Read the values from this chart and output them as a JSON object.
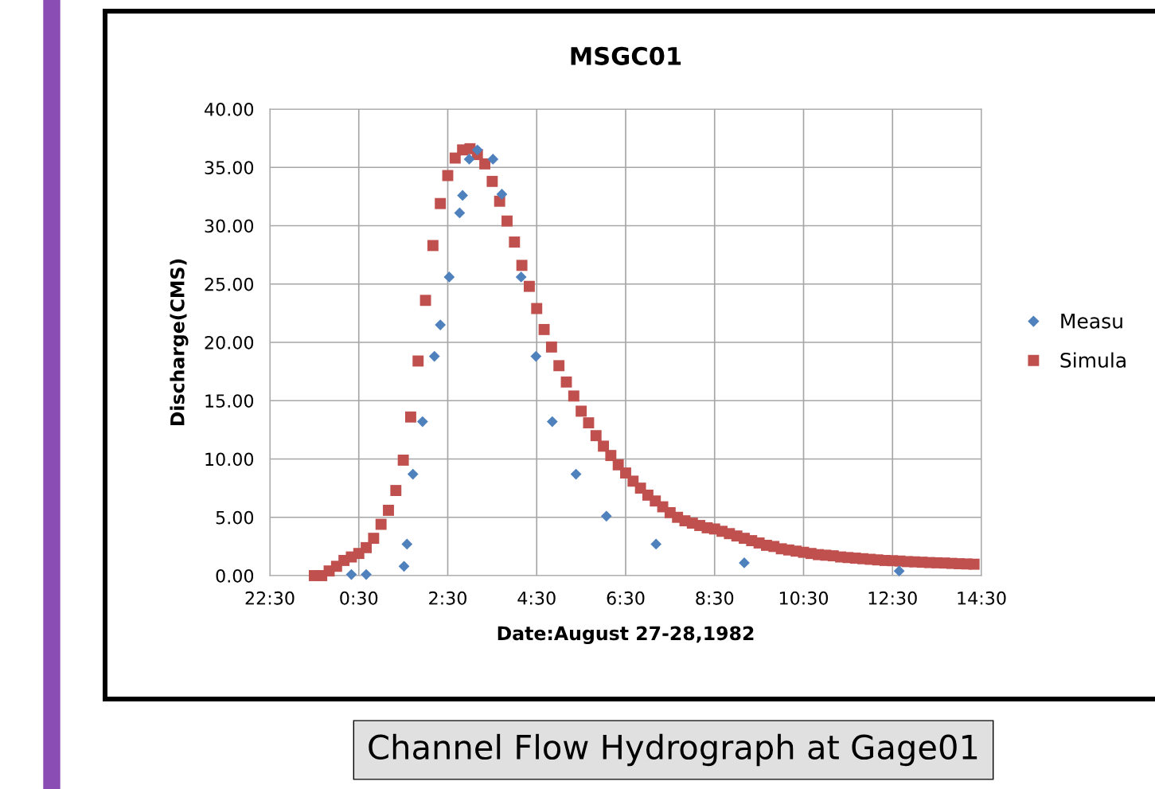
{
  "chart_data": {
    "type": "scatter",
    "title": "MSGC01",
    "xlabel": "Date:August 27-28,1982",
    "ylabel": "Discharge(CMS)",
    "annotations": [
      "Channel Flow Hydrograph at Gage01"
    ],
    "xlim": [
      "1982-08-27T22:30",
      "1982-08-28T14:30"
    ],
    "xticks": [
      {
        "value": "1982-08-27T22:30",
        "label": "22:30"
      },
      {
        "value": "1982-08-28T00:30",
        "label": "0:30"
      },
      {
        "value": "1982-08-28T02:30",
        "label": "2:30"
      },
      {
        "value": "1982-08-28T04:30",
        "label": "4:30"
      },
      {
        "value": "1982-08-28T06:30",
        "label": "6:30"
      },
      {
        "value": "1982-08-28T08:30",
        "label": "8:30"
      },
      {
        "value": "1982-08-28T10:30",
        "label": "10:30"
      },
      {
        "value": "1982-08-28T12:30",
        "label": "12:30"
      },
      {
        "value": "1982-08-28T14:30",
        "label": "14:30"
      }
    ],
    "ylim": [
      0,
      40
    ],
    "yticks": [
      {
        "value": 0,
        "label": "0.00"
      },
      {
        "value": 5,
        "label": "5.00"
      },
      {
        "value": 10,
        "label": "10.00"
      },
      {
        "value": 15,
        "label": "15.00"
      },
      {
        "value": 20,
        "label": "20.00"
      },
      {
        "value": 25,
        "label": "25.00"
      },
      {
        "value": 30,
        "label": "30.00"
      },
      {
        "value": 35,
        "label": "35.00"
      },
      {
        "value": 40,
        "label": "40.00"
      }
    ],
    "grid": true,
    "legend": "right",
    "series": [
      {
        "name": "Measu",
        "color": "#4f81bd",
        "marker": "diamond",
        "x": [
          "1982-08-28T00:20",
          "1982-08-28T00:40",
          "1982-08-28T01:31",
          "1982-08-28T01:35",
          "1982-08-28T01:43",
          "1982-08-28T01:56",
          "1982-08-28T02:12",
          "1982-08-28T02:20",
          "1982-08-28T02:32",
          "1982-08-28T02:46",
          "1982-08-28T02:50",
          "1982-08-28T02:59",
          "1982-08-28T03:10",
          "1982-08-28T03:31",
          "1982-08-28T03:43",
          "1982-08-28T04:09",
          "1982-08-28T04:29",
          "1982-08-28T04:51",
          "1982-08-28T05:23",
          "1982-08-28T06:04",
          "1982-08-28T07:11",
          "1982-08-28T09:10",
          "1982-08-28T12:39"
        ],
        "values": [
          0.1,
          0.1,
          0.8,
          2.7,
          8.7,
          13.2,
          18.8,
          21.5,
          25.6,
          31.1,
          32.6,
          35.7,
          36.5,
          35.7,
          32.7,
          25.6,
          18.8,
          13.2,
          8.7,
          5.1,
          2.7,
          1.1,
          0.4
        ]
      },
      {
        "name": "Simula",
        "color": "#c0504d",
        "marker": "square",
        "x": [
          "1982-08-27T23:30",
          "1982-08-27T23:40",
          "1982-08-27T23:50",
          "1982-08-28T00:00",
          "1982-08-28T00:10",
          "1982-08-28T00:20",
          "1982-08-28T00:30",
          "1982-08-28T00:40",
          "1982-08-28T00:50",
          "1982-08-28T01:00",
          "1982-08-28T01:10",
          "1982-08-28T01:20",
          "1982-08-28T01:30",
          "1982-08-28T01:40",
          "1982-08-28T01:50",
          "1982-08-28T02:00",
          "1982-08-28T02:10",
          "1982-08-28T02:20",
          "1982-08-28T02:30",
          "1982-08-28T02:40",
          "1982-08-28T02:50",
          "1982-08-28T03:00",
          "1982-08-28T03:10",
          "1982-08-28T03:20",
          "1982-08-28T03:30",
          "1982-08-28T03:40",
          "1982-08-28T03:50",
          "1982-08-28T04:00",
          "1982-08-28T04:10",
          "1982-08-28T04:20",
          "1982-08-28T04:30",
          "1982-08-28T04:40",
          "1982-08-28T04:50",
          "1982-08-28T05:00",
          "1982-08-28T05:10",
          "1982-08-28T05:20",
          "1982-08-28T05:30",
          "1982-08-28T05:40",
          "1982-08-28T05:50",
          "1982-08-28T06:00",
          "1982-08-28T06:10",
          "1982-08-28T06:20",
          "1982-08-28T06:30",
          "1982-08-28T06:40",
          "1982-08-28T06:50",
          "1982-08-28T07:00",
          "1982-08-28T07:10",
          "1982-08-28T07:20",
          "1982-08-28T07:30",
          "1982-08-28T07:40",
          "1982-08-28T07:50",
          "1982-08-28T08:00",
          "1982-08-28T08:10",
          "1982-08-28T08:20",
          "1982-08-28T08:30",
          "1982-08-28T08:40",
          "1982-08-28T08:50",
          "1982-08-28T09:00",
          "1982-08-28T09:10",
          "1982-08-28T09:20",
          "1982-08-28T09:30",
          "1982-08-28T09:40",
          "1982-08-28T09:50",
          "1982-08-28T10:00",
          "1982-08-28T10:10",
          "1982-08-28T10:20",
          "1982-08-28T10:30",
          "1982-08-28T10:40",
          "1982-08-28T10:50",
          "1982-08-28T11:00",
          "1982-08-28T11:10",
          "1982-08-28T11:20",
          "1982-08-28T11:30",
          "1982-08-28T11:40",
          "1982-08-28T11:50",
          "1982-08-28T12:00",
          "1982-08-28T12:10",
          "1982-08-28T12:20",
          "1982-08-28T12:30",
          "1982-08-28T12:40",
          "1982-08-28T12:50",
          "1982-08-28T13:00",
          "1982-08-28T13:10",
          "1982-08-28T13:20",
          "1982-08-28T13:30",
          "1982-08-28T13:40",
          "1982-08-28T13:50",
          "1982-08-28T14:00",
          "1982-08-28T14:10",
          "1982-08-28T14:20"
        ],
        "values": [
          0.0,
          0.0,
          0.4,
          0.8,
          1.3,
          1.6,
          1.9,
          2.4,
          3.2,
          4.4,
          5.6,
          7.3,
          9.9,
          13.6,
          18.4,
          23.6,
          28.3,
          31.9,
          34.3,
          35.8,
          36.5,
          36.6,
          36.1,
          35.3,
          33.8,
          32.1,
          30.4,
          28.6,
          26.6,
          24.8,
          22.9,
          21.1,
          19.6,
          18.0,
          16.6,
          15.4,
          14.1,
          13.1,
          12.0,
          11.1,
          10.3,
          9.5,
          8.8,
          8.1,
          7.5,
          6.9,
          6.4,
          5.9,
          5.4,
          5.0,
          4.7,
          4.5,
          4.3,
          4.1,
          4.0,
          3.8,
          3.6,
          3.4,
          3.2,
          3.0,
          2.8,
          2.6,
          2.5,
          2.3,
          2.2,
          2.1,
          2.0,
          1.9,
          1.8,
          1.75,
          1.7,
          1.6,
          1.55,
          1.5,
          1.45,
          1.4,
          1.35,
          1.3,
          1.28,
          1.25,
          1.2,
          1.18,
          1.15,
          1.12,
          1.1,
          1.08,
          1.05,
          1.02,
          1.0,
          0.98
        ]
      }
    ]
  }
}
